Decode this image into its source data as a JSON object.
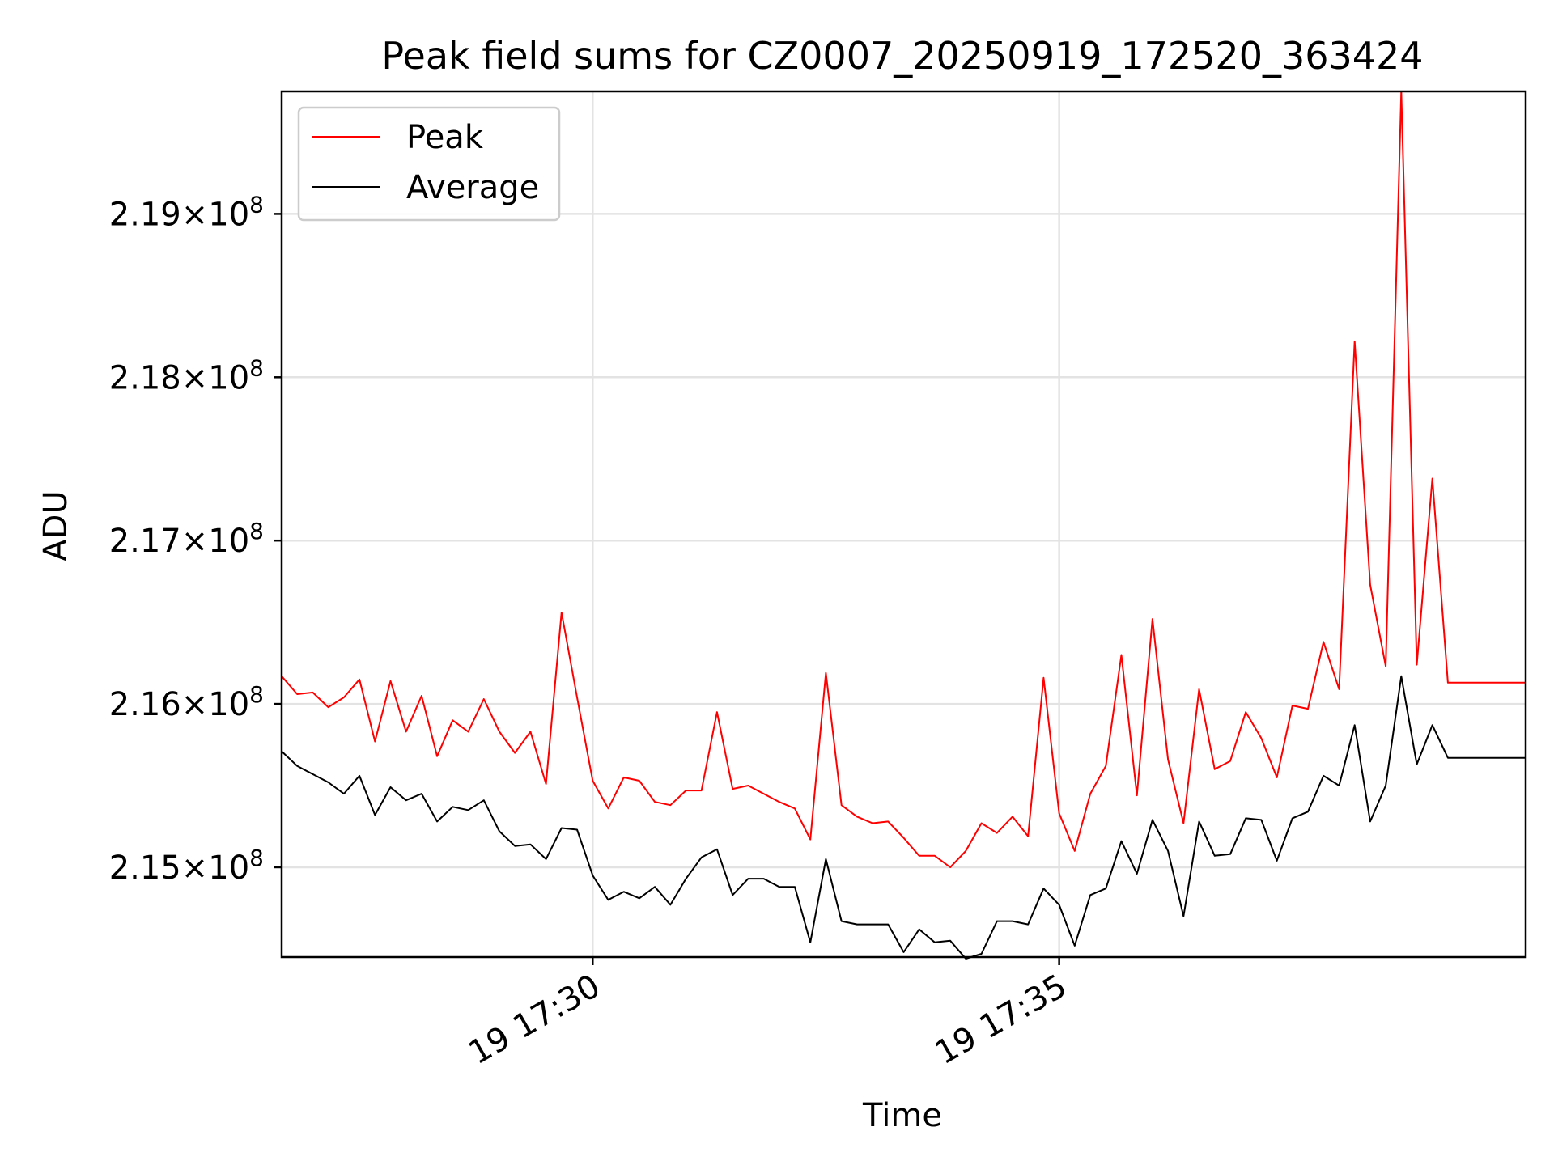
{
  "chart_data": {
    "type": "line",
    "title": "Peak field sums for CZ0007_20250919_172520_363424",
    "xlabel": "Time",
    "ylabel": "ADU",
    "x_range": [
      0,
      80
    ],
    "ylim": [
      2.1445,
      2.1975
    ],
    "y_ticks": [
      {
        "value": 2.15,
        "mantissa": "2.15",
        "exp": "8"
      },
      {
        "value": 2.16,
        "mantissa": "2.16",
        "exp": "8"
      },
      {
        "value": 2.17,
        "mantissa": "2.17",
        "exp": "8"
      },
      {
        "value": 2.18,
        "mantissa": "2.18",
        "exp": "8"
      },
      {
        "value": 2.19,
        "mantissa": "2.19",
        "exp": "8"
      }
    ],
    "y_tick_times": "×10",
    "x_ticks": [
      {
        "value": 20,
        "label": "19 17:30"
      },
      {
        "value": 50,
        "label": "19 17:35"
      }
    ],
    "grid": true,
    "legend_position": "top-left",
    "series": [
      {
        "name": "Peak",
        "color": "#ff0000",
        "y": [
          2.1617,
          2.1606,
          2.1607,
          2.1598,
          2.1604,
          2.1615,
          2.1577,
          2.1614,
          2.1583,
          2.1605,
          2.1568,
          2.159,
          2.1583,
          2.1603,
          2.1583,
          2.157,
          2.1583,
          2.1551,
          2.1656,
          2.1604,
          2.1553,
          2.1536,
          2.1555,
          2.1553,
          2.154,
          2.1538,
          2.1547,
          2.1547,
          2.1595,
          2.1548,
          2.155,
          2.1545,
          2.154,
          2.1536,
          2.1517,
          2.1619,
          2.1538,
          2.1531,
          2.1527,
          2.1528,
          2.1518,
          2.1507,
          2.1507,
          2.15,
          2.151,
          2.1527,
          2.1521,
          2.1531,
          2.1519,
          2.1616,
          2.1533,
          2.151,
          2.1545,
          2.1562,
          2.163,
          2.1544,
          2.1652,
          2.1566,
          2.1527,
          2.1609,
          2.156,
          2.1565,
          2.1595,
          2.1579,
          2.1555,
          2.1599,
          2.1597,
          2.1638,
          2.1609,
          2.1822,
          2.1673,
          2.1623,
          2.1975,
          2.1624,
          2.1738,
          2.1613,
          2.1613,
          2.1613,
          2.1613,
          2.1613,
          2.1613
        ]
      },
      {
        "name": "Average",
        "color": "#000000",
        "y": [
          2.1571,
          2.1562,
          2.1557,
          2.1552,
          2.1545,
          2.1556,
          2.1532,
          2.1549,
          2.1541,
          2.1545,
          2.1528,
          2.1537,
          2.1535,
          2.1541,
          2.1522,
          2.1513,
          2.1514,
          2.1505,
          2.1524,
          2.1523,
          2.1495,
          2.148,
          2.1485,
          2.1481,
          2.1488,
          2.1477,
          2.1493,
          2.1506,
          2.1511,
          2.1483,
          2.1493,
          2.1493,
          2.1488,
          2.1488,
          2.1454,
          2.1505,
          2.1467,
          2.1465,
          2.1465,
          2.1465,
          2.1448,
          2.1462,
          2.1454,
          2.1455,
          2.1444,
          2.1447,
          2.1467,
          2.1467,
          2.1465,
          2.1487,
          2.1477,
          2.1452,
          2.1483,
          2.1487,
          2.1516,
          2.1496,
          2.1529,
          2.151,
          2.147,
          2.1528,
          2.1507,
          2.1508,
          2.153,
          2.1529,
          2.1504,
          2.153,
          2.1534,
          2.1556,
          2.155,
          2.1587,
          2.1528,
          2.155,
          2.1617,
          2.1563,
          2.1587,
          2.1567,
          2.1567,
          2.1567,
          2.1567,
          2.1567,
          2.1567
        ]
      }
    ]
  }
}
